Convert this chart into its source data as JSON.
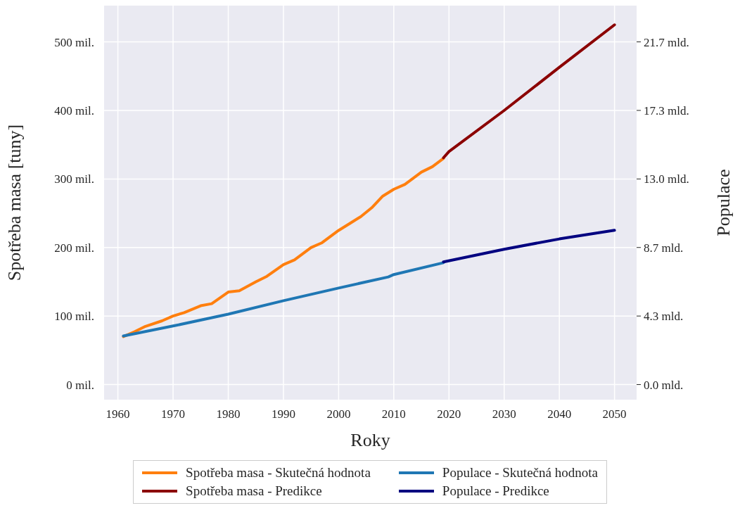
{
  "chart_data": {
    "type": "line",
    "xlabel": "Roky",
    "ylabel": "Spotřeba masa [tuny]",
    "y2label": "Populace",
    "xlim": [
      1957.5,
      2054
    ],
    "xticks": [
      1960,
      1970,
      1980,
      1990,
      2000,
      2010,
      2020,
      2030,
      2040,
      2050
    ],
    "ylim": [
      -22,
      553
    ],
    "yticks": [
      {
        "value": 0,
        "label": "0 mil."
      },
      {
        "value": 100,
        "label": "100 mil."
      },
      {
        "value": 200,
        "label": "200 mil."
      },
      {
        "value": 300,
        "label": "300 mil."
      },
      {
        "value": 400,
        "label": "400 mil."
      },
      {
        "value": 500,
        "label": "500 mil."
      }
    ],
    "y2lim": [
      -0.953,
      23.94
    ],
    "y2ticks": [
      {
        "value": 0,
        "label": "0.0 mld."
      },
      {
        "value": 4.33,
        "label": "4.3 mld."
      },
      {
        "value": 8.66,
        "label": "8.7 mld."
      },
      {
        "value": 12.99,
        "label": "13.0 mld."
      },
      {
        "value": 17.32,
        "label": "17.3 mld."
      },
      {
        "value": 21.65,
        "label": "21.7 mld."
      }
    ],
    "grid": true,
    "legend": "bottom",
    "line_style": "solid",
    "marker": "none",
    "series": [
      {
        "name": "Spotřeba masa - Skutečná hodnota",
        "color": "#ff7f0e",
        "x": [
          1961,
          1963,
          1965,
          1968,
          1970,
          1972,
          1975,
          1977,
          1980,
          1982,
          1985,
          1987,
          1990,
          1992,
          1995,
          1997,
          2000,
          2002,
          2004,
          2006,
          2008,
          2010,
          2012,
          2015,
          2017,
          2019
        ],
        "values": [
          70,
          77,
          85,
          93,
          100,
          105,
          115,
          118,
          135,
          137,
          150,
          158,
          175,
          182,
          200,
          207,
          225,
          235,
          245,
          258,
          275,
          285,
          292,
          310,
          318,
          330
        ]
      },
      {
        "name": "Spotřeba masa - Predikce",
        "color": "#8b0000",
        "x": [
          2019,
          2020,
          2030,
          2040,
          2050
        ],
        "values": [
          331,
          340,
          400,
          463,
          525
        ]
      },
      {
        "name": "Populace - Skutečná hodnota",
        "color": "#1f77b4",
        "axis": "y2",
        "x": [
          1961,
          1970,
          1980,
          1990,
          2000,
          2009,
          2010,
          2019
        ],
        "values": [
          3.07,
          3.7,
          4.45,
          5.3,
          6.1,
          6.8,
          6.95,
          7.7
        ]
      },
      {
        "name": "Populace - Predikce",
        "color": "#000080",
        "axis": "y2",
        "x": [
          2019,
          2030,
          2040,
          2050
        ],
        "values": [
          7.75,
          8.55,
          9.2,
          9.75
        ]
      }
    ]
  }
}
